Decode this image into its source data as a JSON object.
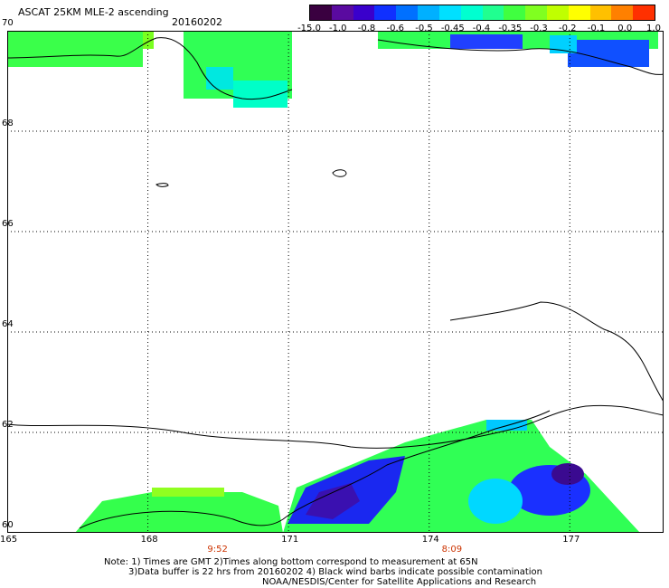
{
  "header": {
    "title": "ASCAT 25KM MLE-2 ascending",
    "date": "20160202"
  },
  "colorbar": {
    "colors": [
      "#3a0040",
      "#5a0aa0",
      "#3a00cc",
      "#1030ff",
      "#0070ff",
      "#00b0ff",
      "#00e0ff",
      "#00ffd0",
      "#20ff90",
      "#40ff40",
      "#80ff20",
      "#c0ff00",
      "#ffff00",
      "#ffc000",
      "#ff8000",
      "#ff3000"
    ],
    "labels": [
      "-15.0",
      "-1.0",
      "-0.8",
      "-0.6",
      "-0.5",
      "-0.45",
      "-0.4",
      "-0.35",
      "-0.3",
      "-0.2",
      "-0.1",
      "0.0",
      "1.0"
    ]
  },
  "map": {
    "lon_range": [
      165,
      179
    ],
    "lat_range": [
      60,
      70
    ],
    "lat_labels": [
      "70",
      "68",
      "66",
      "64",
      "62",
      "60"
    ],
    "lon_labels": [
      "165",
      "168",
      "171",
      "174",
      "177"
    ],
    "time_labels": [
      "9:52",
      "8:09"
    ]
  },
  "notes": {
    "line1": "Note: 1) Times are GMT 2)Times along bottom correspond to measurement at 65N",
    "line2": "3)Data buffer is 22 hrs from 20160202 4) Black wind barbs indicate possible contamination",
    "line3": "NOAA/NESDIS/Center for Satellite Applications and Research"
  }
}
